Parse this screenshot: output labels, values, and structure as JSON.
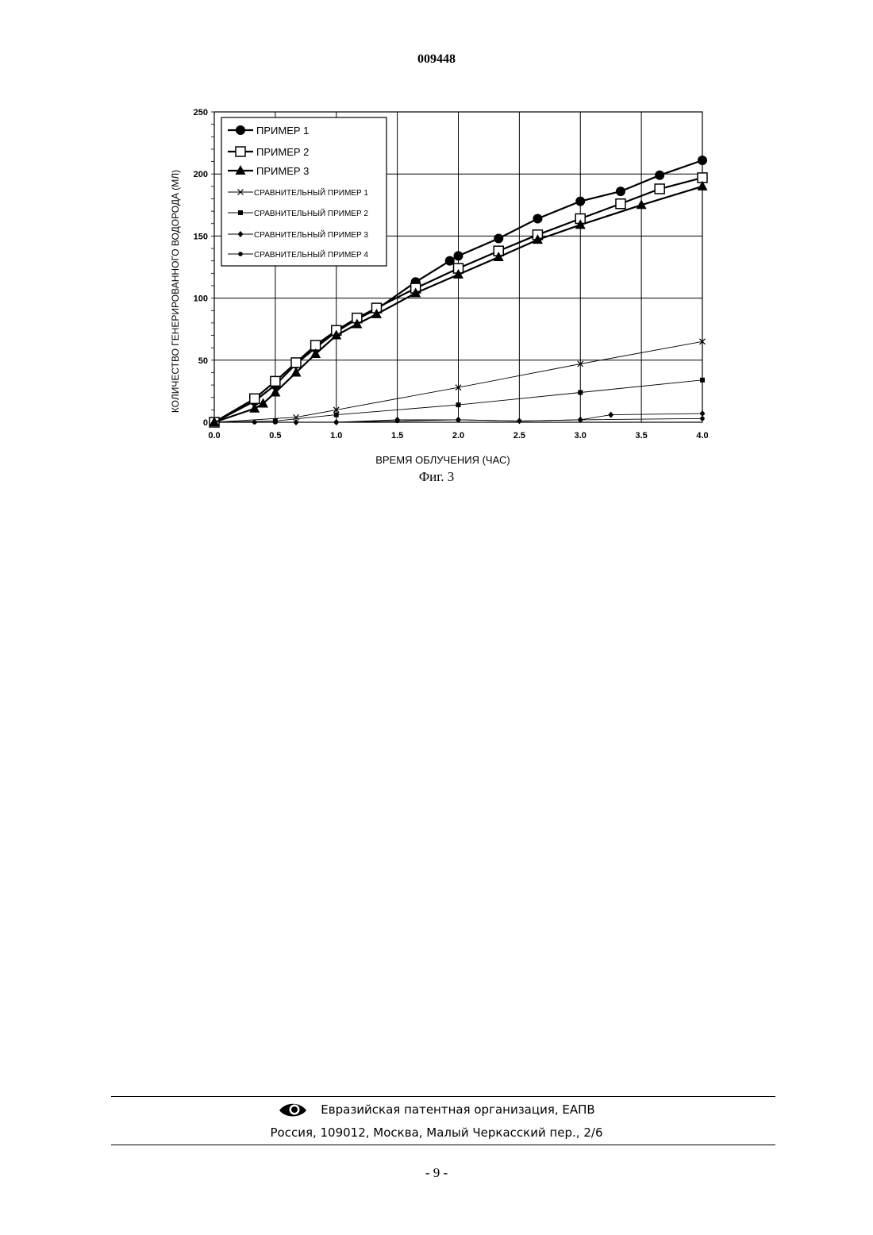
{
  "document": {
    "number": "009448",
    "figure_caption": "Фиг. 3",
    "page_number": "- 9 -"
  },
  "footer": {
    "organization": "Евразийская патентная организация, ЕАПВ",
    "address": "Россия, 109012, Москва, Малый Черкасский пер., 2/6",
    "logo_icon": "eapo-eye-logo-icon"
  },
  "chart_data": {
    "type": "line",
    "title": "",
    "xlabel": "ВРЕМЯ ОБЛУЧЕНИЯ (ЧАС)",
    "ylabel": "КОЛИЧЕСТВО ГЕНЕРИРОВАННОГО ВОДОРОДА (МЛ)",
    "xlim": [
      0,
      4
    ],
    "ylim": [
      0,
      250
    ],
    "xticks": [
      "0.0",
      "0.5",
      "1.0",
      "1.5",
      "2.0",
      "2.5",
      "3.0",
      "3.5",
      "4.0"
    ],
    "yticks": [
      "0",
      "50",
      "100",
      "150",
      "200",
      "250"
    ],
    "grid": true,
    "legend_position": "top-left",
    "series": [
      {
        "name": "ПРИМЕР 1",
        "marker": "circle-filled",
        "line": "thick",
        "points": [
          [
            0,
            0
          ],
          [
            0.33,
            17
          ],
          [
            0.5,
            30
          ],
          [
            0.67,
            47
          ],
          [
            0.83,
            60
          ],
          [
            1.0,
            73
          ],
          [
            1.17,
            83
          ],
          [
            1.33,
            91
          ],
          [
            1.65,
            113
          ],
          [
            1.93,
            130
          ],
          [
            2.0,
            134
          ],
          [
            2.33,
            148
          ],
          [
            2.65,
            164
          ],
          [
            3.0,
            178
          ],
          [
            3.33,
            186
          ],
          [
            3.65,
            199
          ],
          [
            4.0,
            211
          ]
        ]
      },
      {
        "name": "ПРИМЕР 2",
        "marker": "square-open",
        "line": "thick",
        "points": [
          [
            0,
            0
          ],
          [
            0.33,
            19
          ],
          [
            0.5,
            33
          ],
          [
            0.67,
            48
          ],
          [
            0.83,
            62
          ],
          [
            1.0,
            74
          ],
          [
            1.17,
            84
          ],
          [
            1.33,
            92
          ],
          [
            1.65,
            108
          ],
          [
            2.0,
            124
          ],
          [
            2.33,
            138
          ],
          [
            2.65,
            151
          ],
          [
            3.0,
            164
          ],
          [
            3.33,
            176
          ],
          [
            3.65,
            188
          ],
          [
            4.0,
            197
          ]
        ]
      },
      {
        "name": "ПРИМЕР 3",
        "marker": "triangle-filled",
        "line": "thick",
        "points": [
          [
            0,
            0
          ],
          [
            0.33,
            11
          ],
          [
            0.4,
            15
          ],
          [
            0.5,
            24
          ],
          [
            0.67,
            40
          ],
          [
            0.83,
            55
          ],
          [
            1.0,
            70
          ],
          [
            1.17,
            79
          ],
          [
            1.33,
            87
          ],
          [
            1.65,
            104
          ],
          [
            2.0,
            119
          ],
          [
            2.33,
            133
          ],
          [
            2.65,
            147
          ],
          [
            3.0,
            159
          ],
          [
            3.5,
            175
          ],
          [
            4.0,
            190
          ]
        ]
      },
      {
        "name": "СРАВНИТЕЛЬНЫЙ ПРИМЕР 1",
        "marker": "x",
        "line": "thin",
        "points": [
          [
            0,
            0
          ],
          [
            0.67,
            4
          ],
          [
            1.0,
            10
          ],
          [
            2.0,
            28
          ],
          [
            3.0,
            47
          ],
          [
            4.0,
            65
          ]
        ]
      },
      {
        "name": "СРАВНИТЕЛЬНЫЙ ПРИМЕР 2",
        "marker": "square-small",
        "line": "thin",
        "points": [
          [
            0,
            0
          ],
          [
            0.5,
            1
          ],
          [
            1.0,
            6
          ],
          [
            2.0,
            14
          ],
          [
            3.0,
            24
          ],
          [
            4.0,
            34
          ]
        ]
      },
      {
        "name": "СРАВНИТЕЛЬНЫЙ ПРИМЕР 3",
        "marker": "diamond",
        "line": "thin",
        "points": [
          [
            0,
            0
          ],
          [
            0.67,
            0
          ],
          [
            1.0,
            0
          ],
          [
            1.5,
            2
          ],
          [
            2.0,
            2
          ],
          [
            2.5,
            1
          ],
          [
            3.0,
            2
          ],
          [
            3.25,
            6
          ],
          [
            4.0,
            7
          ]
        ]
      },
      {
        "name": "СРАВНИТЕЛЬНЫЙ ПРИМЕР 4",
        "marker": "dot",
        "line": "thin",
        "points": [
          [
            0,
            0
          ],
          [
            0.33,
            0
          ],
          [
            0.5,
            0
          ],
          [
            0.67,
            0
          ],
          [
            1.0,
            0
          ],
          [
            1.5,
            1
          ],
          [
            2.0,
            2
          ],
          [
            2.5,
            1
          ],
          [
            3.0,
            2
          ],
          [
            4.0,
            3
          ]
        ]
      }
    ]
  }
}
